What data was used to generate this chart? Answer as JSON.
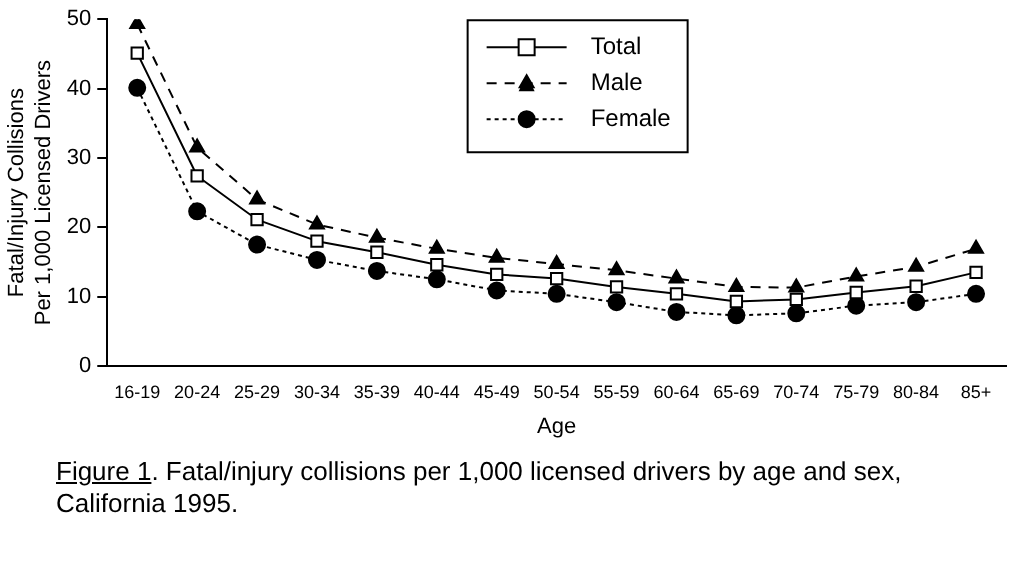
{
  "chart_data": {
    "type": "line",
    "xlabel": "Age",
    "ylabel": "Fatal/Injury Collisions\nPer 1,000 Licensed Drivers",
    "categories": [
      "16-19",
      "20-24",
      "25-29",
      "30-34",
      "35-39",
      "40-44",
      "45-49",
      "50-54",
      "55-59",
      "60-64",
      "65-69",
      "70-74",
      "75-79",
      "80-84",
      "85+"
    ],
    "series": [
      {
        "name": "Total",
        "color": "#000000",
        "marker": "square",
        "line_style": "solid",
        "values": [
          45.1,
          27.4,
          21.1,
          18,
          16.4,
          14.6,
          13.2,
          12.6,
          11.4,
          10.4,
          9.3,
          9.6,
          10.6,
          11.5,
          13.5
        ]
      },
      {
        "name": "Male",
        "color": "#000000",
        "marker": "triangle",
        "line_style": "dashed",
        "values": [
          49.3,
          31.5,
          24,
          20.4,
          18.5,
          16.9,
          15.6,
          14.7,
          13.8,
          12.6,
          11.4,
          11.3,
          12.9,
          14.3,
          16.9
        ]
      },
      {
        "name": "Female",
        "color": "#000000",
        "marker": "circle",
        "line_style": "dotted",
        "values": [
          40.1,
          22.3,
          17.5,
          15.3,
          13.7,
          12.5,
          10.9,
          10.4,
          9.2,
          7.8,
          7.3,
          7.6,
          8.7,
          9.2,
          10.4
        ]
      }
    ],
    "ylim": [
      0,
      50
    ],
    "yticks": [
      0,
      10,
      20,
      30,
      40,
      50
    ],
    "grid": false,
    "legend": "top",
    "annotations": [
      "Figure 1.  Fatal/injury collisions per 1,000 licensed drivers by age and sex, California 1995."
    ]
  }
}
